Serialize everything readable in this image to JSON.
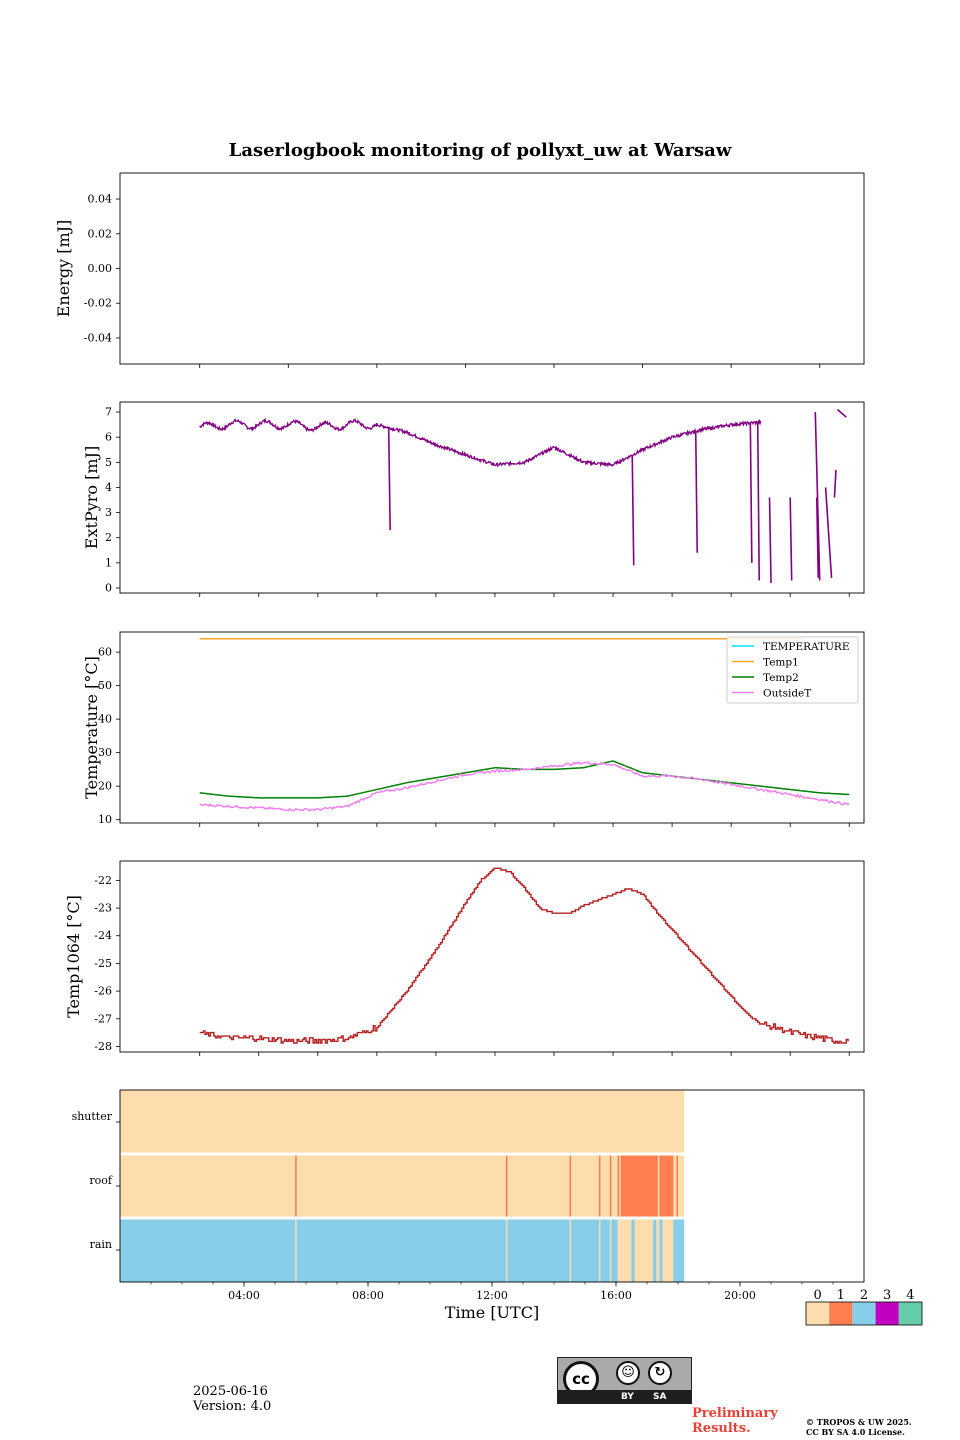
{
  "figure": {
    "title": "Laserlogbook monitoring of pollyxt_uw at Warsaw",
    "date": "2025-06-16",
    "version": "Version: 4.0",
    "preliminary": "Preliminary\nResults.",
    "copyright": "© TROPOS & UW 2025.\nCC BY SA 4.0 License.",
    "license_badge": {
      "by": "BY",
      "sa": "SA",
      "cc": "cc"
    }
  },
  "colors": {
    "extpyro": "#800080",
    "temperature": "#00e5ee",
    "temp1": "#f5a623",
    "temp2": "#008000",
    "outsideT": "#ee82ee",
    "temp1064": "#b22222",
    "status_0": "#fddcad",
    "status_1": "#ff7f50",
    "status_2": "#87ceeb",
    "status_3": "#c000c0",
    "status_4": "#66cdaa"
  },
  "chart_data": [
    {
      "type": "line",
      "ylabel": "Energy [mJ]",
      "ylim": [
        -0.055,
        0.055
      ],
      "yticks": [
        "0.04",
        "0.02",
        "0.00",
        "-0.02",
        "-0.04"
      ],
      "series": []
    },
    {
      "type": "line",
      "ylabel": "ExtPyro [mJ]",
      "ylim": [
        -0.2,
        7.4
      ],
      "yticks": [
        "7",
        "6",
        "5",
        "4",
        "3",
        "2",
        "1",
        "0"
      ],
      "series": [
        {
          "x_hours": [
            1.0,
            2.0,
            3.0,
            4.0,
            5.0,
            6.0,
            7.0,
            8.0,
            9.0,
            10.0,
            11.0,
            12.0,
            13.0,
            14.0,
            15.0,
            16.0,
            17.0,
            18.0,
            19.0,
            20.0
          ],
          "values": [
            6.4,
            6.5,
            6.5,
            6.5,
            6.4,
            6.5,
            6.5,
            6.2,
            5.7,
            5.3,
            4.9,
            5.0,
            5.6,
            5.0,
            4.9,
            5.5,
            6.0,
            6.3,
            6.5,
            6.6
          ]
        }
      ],
      "dropouts_hours": [
        7.4,
        15.65,
        17.8,
        19.65,
        19.9,
        20.3,
        21.0,
        21.9,
        22.5
      ]
    },
    {
      "type": "line",
      "ylabel": "Temperature [°C]",
      "ylim": [
        9,
        66
      ],
      "yticks": [
        "60",
        "50",
        "40",
        "30",
        "20",
        "10"
      ],
      "legend_position": "top-right",
      "series": [
        {
          "name": "TEMPERATURE",
          "color_key": "temperature",
          "x_hours": [],
          "values": []
        },
        {
          "name": "Temp1",
          "color_key": "temp1",
          "x_hours": [
            1.0,
            21.4
          ],
          "values": [
            64,
            64
          ]
        },
        {
          "name": "Temp2",
          "color_key": "temp2",
          "x_hours": [
            1.0,
            2.0,
            3.0,
            4.0,
            5.0,
            6.0,
            7.0,
            8.0,
            9.0,
            10.0,
            11.0,
            12.0,
            13.0,
            14.0,
            15.0,
            16.0,
            17.0,
            18.0,
            19.0,
            20.0,
            21.0,
            22.0,
            23.0
          ],
          "values": [
            18,
            17,
            16.5,
            16.5,
            16.5,
            17,
            19,
            21,
            22.5,
            24,
            25.5,
            25,
            25,
            25.5,
            27.5,
            24,
            23,
            22,
            21,
            20,
            19,
            18,
            17.5
          ]
        },
        {
          "name": "OutsideT",
          "color_key": "outsideT",
          "x_hours": [
            1.0,
            2.0,
            3.0,
            4.0,
            5.0,
            6.0,
            7.0,
            8.0,
            9.0,
            10.0,
            11.0,
            12.0,
            13.0,
            14.0,
            15.0,
            16.0,
            17.0,
            18.0,
            19.0,
            20.0,
            21.0,
            22.0,
            23.0
          ],
          "values": [
            14.5,
            14,
            13.5,
            13,
            13,
            14,
            18,
            19.5,
            21.5,
            23.5,
            24.5,
            25,
            26,
            27,
            26.5,
            23,
            23,
            22,
            20.5,
            19,
            17.5,
            16,
            14.5
          ]
        }
      ]
    },
    {
      "type": "line",
      "ylabel": "Temp1064 [°C]",
      "ylim": [
        -28.2,
        -21.3
      ],
      "yticks": [
        "-22",
        "-23",
        "-24",
        "-25",
        "-26",
        "-27",
        "-28"
      ],
      "series": [
        {
          "x_hours": [
            1.0,
            2.0,
            3.0,
            4.0,
            5.0,
            6.0,
            7.0,
            8.0,
            9.0,
            10.0,
            10.5,
            11.0,
            11.5,
            12.0,
            12.5,
            13.0,
            13.5,
            14.0,
            14.5,
            15.0,
            15.5,
            16.0,
            16.5,
            17.0,
            17.5,
            18.0,
            18.5,
            19.0,
            19.5,
            20.0,
            20.5,
            21.0,
            21.5,
            22.0,
            22.5,
            23.0
          ],
          "values": [
            -27.5,
            -27.7,
            -27.7,
            -27.8,
            -27.8,
            -27.7,
            -27.3,
            -26.0,
            -24.5,
            -22.8,
            -22.0,
            -21.55,
            -21.7,
            -22.3,
            -23.0,
            -23.2,
            -23.2,
            -22.9,
            -22.7,
            -22.5,
            -22.3,
            -22.5,
            -23.2,
            -23.8,
            -24.4,
            -25.0,
            -25.6,
            -26.2,
            -26.8,
            -27.2,
            -27.3,
            -27.5,
            -27.6,
            -27.7,
            -27.8,
            -27.8
          ]
        }
      ]
    },
    {
      "type": "heatmap",
      "xlabel": "Time [UTC]",
      "xtick_labels": [
        "04:00",
        "08:00",
        "12:00",
        "16:00",
        "20:00"
      ],
      "xtick_hours": [
        4,
        8,
        12,
        16,
        20
      ],
      "rows": [
        "shutter",
        "roof",
        "rain"
      ],
      "colorbar_ticks": [
        "0",
        "1",
        "2",
        "3",
        "4"
      ],
      "shutter": [
        {
          "start": 0,
          "end": 18.2,
          "value": 0
        }
      ],
      "roof": [
        {
          "start": 0,
          "end": 18.2,
          "value": 0
        },
        {
          "start": 5.65,
          "end": 5.7,
          "value": 1
        },
        {
          "start": 12.45,
          "end": 12.5,
          "value": 1
        },
        {
          "start": 14.5,
          "end": 14.55,
          "value": 1
        },
        {
          "start": 15.45,
          "end": 15.5,
          "value": 1
        },
        {
          "start": 15.8,
          "end": 15.85,
          "value": 1
        },
        {
          "start": 16.05,
          "end": 16.1,
          "value": 1
        },
        {
          "start": 16.15,
          "end": 17.35,
          "value": 1
        },
        {
          "start": 17.4,
          "end": 17.85,
          "value": 1
        },
        {
          "start": 17.95,
          "end": 18.0,
          "value": 1
        }
      ],
      "rain": [
        {
          "start": 0,
          "end": 18.2,
          "value": 2
        },
        {
          "start": 5.65,
          "end": 5.7,
          "value": 0
        },
        {
          "start": 12.45,
          "end": 12.5,
          "value": 0
        },
        {
          "start": 14.5,
          "end": 14.55,
          "value": 0
        },
        {
          "start": 15.45,
          "end": 15.5,
          "value": 0
        },
        {
          "start": 15.8,
          "end": 15.85,
          "value": 0
        },
        {
          "start": 16.05,
          "end": 16.5,
          "value": 0
        },
        {
          "start": 16.6,
          "end": 17.2,
          "value": 0
        },
        {
          "start": 17.3,
          "end": 17.4,
          "value": 0
        },
        {
          "start": 17.5,
          "end": 17.85,
          "value": 0
        }
      ]
    }
  ]
}
